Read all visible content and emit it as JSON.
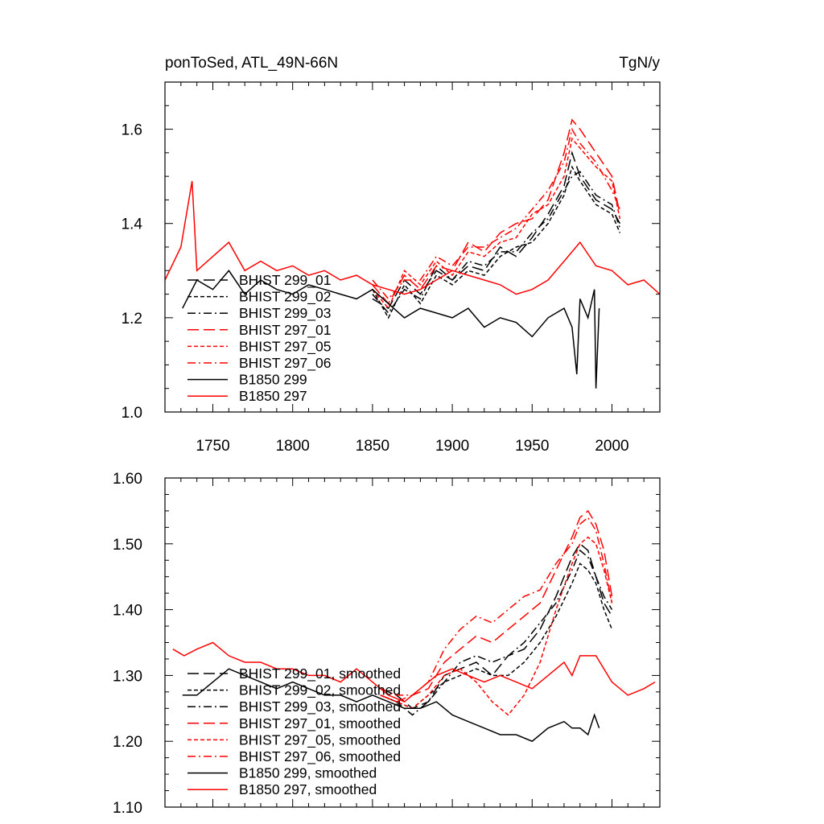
{
  "chart_data": [
    {
      "type": "line",
      "title_left": "ponToSed, ATL_49N-66N",
      "title_right": "TgN/y",
      "xlim": [
        1720,
        2030
      ],
      "ylim": [
        1.0,
        1.7
      ],
      "xticks": [
        1750,
        1800,
        1850,
        1900,
        1950,
        2000
      ],
      "xtick_labels": [
        "1750",
        "1800",
        "1850",
        "1900",
        "1950",
        "2000"
      ],
      "yticks": [
        1.0,
        1.2,
        1.4,
        1.6
      ],
      "ytick_labels": [
        "1.0",
        "1.2",
        "1.4",
        "1.6"
      ],
      "legend": [
        {
          "label": "BHIST 299_01",
          "color": "#000000",
          "dash": "14,6"
        },
        {
          "label": "BHIST 299_02",
          "color": "#000000",
          "dash": "5,3"
        },
        {
          "label": "BHIST 299_03",
          "color": "#000000",
          "dash": "10,4,2,4"
        },
        {
          "label": "BHIST 297_01",
          "color": "#ff0000",
          "dash": "14,6"
        },
        {
          "label": "BHIST 297_05",
          "color": "#ff0000",
          "dash": "5,3"
        },
        {
          "label": "BHIST 297_06",
          "color": "#ff0000",
          "dash": "10,4,2,4"
        },
        {
          "label": "B1850 299",
          "color": "#000000",
          "dash": ""
        },
        {
          "label": "B1850 297",
          "color": "#ff0000",
          "dash": ""
        }
      ],
      "series": [
        {
          "name": "BHIST 299_01",
          "color": "#000000",
          "dash": "14,6",
          "x": [
            1850,
            1860,
            1870,
            1880,
            1890,
            1900,
            1910,
            1920,
            1930,
            1940,
            1950,
            1960,
            1970,
            1975,
            1980,
            1990,
            2000,
            2005
          ],
          "y": [
            1.24,
            1.22,
            1.28,
            1.25,
            1.3,
            1.28,
            1.31,
            1.3,
            1.35,
            1.33,
            1.37,
            1.42,
            1.48,
            1.55,
            1.5,
            1.45,
            1.43,
            1.4
          ]
        },
        {
          "name": "BHIST 299_02",
          "color": "#000000",
          "dash": "5,3",
          "x": [
            1850,
            1860,
            1870,
            1880,
            1890,
            1900,
            1910,
            1920,
            1930,
            1940,
            1950,
            1960,
            1970,
            1975,
            1980,
            1990,
            2000,
            2005
          ],
          "y": [
            1.26,
            1.2,
            1.27,
            1.23,
            1.29,
            1.27,
            1.3,
            1.29,
            1.33,
            1.35,
            1.36,
            1.4,
            1.46,
            1.52,
            1.49,
            1.44,
            1.42,
            1.38
          ]
        },
        {
          "name": "BHIST 299_03",
          "color": "#000000",
          "dash": "10,4,2,4",
          "x": [
            1850,
            1860,
            1870,
            1880,
            1890,
            1900,
            1910,
            1920,
            1930,
            1940,
            1950,
            1960,
            1970,
            1975,
            1980,
            1990,
            2000,
            2005
          ],
          "y": [
            1.25,
            1.21,
            1.26,
            1.24,
            1.31,
            1.28,
            1.32,
            1.31,
            1.34,
            1.34,
            1.38,
            1.41,
            1.47,
            1.5,
            1.51,
            1.46,
            1.44,
            1.39
          ]
        },
        {
          "name": "BHIST 297_01",
          "color": "#ff0000",
          "dash": "14,6",
          "x": [
            1850,
            1860,
            1870,
            1880,
            1890,
            1900,
            1910,
            1920,
            1930,
            1940,
            1950,
            1960,
            1970,
            1975,
            1980,
            1990,
            2000,
            2005
          ],
          "y": [
            1.27,
            1.23,
            1.29,
            1.26,
            1.31,
            1.3,
            1.36,
            1.34,
            1.38,
            1.4,
            1.41,
            1.45,
            1.55,
            1.62,
            1.6,
            1.55,
            1.5,
            1.42
          ]
        },
        {
          "name": "BHIST 297_05",
          "color": "#ff0000",
          "dash": "5,3",
          "x": [
            1850,
            1860,
            1870,
            1880,
            1890,
            1900,
            1910,
            1920,
            1930,
            1940,
            1950,
            1960,
            1970,
            1975,
            1980,
            1990,
            2000,
            2005
          ],
          "y": [
            1.26,
            1.22,
            1.3,
            1.27,
            1.32,
            1.29,
            1.34,
            1.33,
            1.36,
            1.37,
            1.42,
            1.44,
            1.5,
            1.58,
            1.56,
            1.52,
            1.49,
            1.41
          ]
        },
        {
          "name": "BHIST 297_06",
          "color": "#ff0000",
          "dash": "10,4,2,4",
          "x": [
            1850,
            1860,
            1870,
            1880,
            1890,
            1900,
            1910,
            1920,
            1930,
            1940,
            1950,
            1960,
            1970,
            1975,
            1980,
            1990,
            2000,
            2005
          ],
          "y": [
            1.28,
            1.24,
            1.28,
            1.28,
            1.33,
            1.31,
            1.35,
            1.35,
            1.37,
            1.39,
            1.43,
            1.47,
            1.53,
            1.6,
            1.57,
            1.53,
            1.47,
            1.43
          ]
        },
        {
          "name": "B1850 299",
          "color": "#000000",
          "dash": "",
          "x": [
            1731,
            1740,
            1750,
            1760,
            1770,
            1780,
            1790,
            1800,
            1810,
            1820,
            1830,
            1840,
            1850,
            1860,
            1870,
            1880,
            1890,
            1900,
            1910,
            1920,
            1930,
            1940,
            1950,
            1960,
            1970,
            1975,
            1978,
            1980,
            1985,
            1989,
            1990,
            1992
          ],
          "y": [
            1.22,
            1.28,
            1.26,
            1.3,
            1.25,
            1.28,
            1.26,
            1.25,
            1.27,
            1.26,
            1.25,
            1.24,
            1.26,
            1.23,
            1.2,
            1.22,
            1.21,
            1.2,
            1.22,
            1.18,
            1.2,
            1.19,
            1.16,
            1.2,
            1.22,
            1.18,
            1.08,
            1.24,
            1.2,
            1.26,
            1.05,
            1.22
          ]
        },
        {
          "name": "B1850 297",
          "color": "#ff0000",
          "dash": "",
          "x": [
            1720,
            1730,
            1737,
            1740,
            1750,
            1760,
            1770,
            1780,
            1790,
            1800,
            1810,
            1820,
            1830,
            1840,
            1850,
            1860,
            1870,
            1880,
            1890,
            1900,
            1910,
            1920,
            1930,
            1940,
            1950,
            1960,
            1970,
            1980,
            1990,
            2000,
            2010,
            2020,
            2030
          ],
          "y": [
            1.28,
            1.35,
            1.49,
            1.3,
            1.33,
            1.36,
            1.3,
            1.32,
            1.3,
            1.31,
            1.29,
            1.3,
            1.28,
            1.29,
            1.27,
            1.26,
            1.25,
            1.26,
            1.28,
            1.3,
            1.29,
            1.28,
            1.27,
            1.25,
            1.26,
            1.28,
            1.32,
            1.36,
            1.31,
            1.3,
            1.27,
            1.28,
            1.25
          ]
        }
      ]
    },
    {
      "type": "line",
      "xlim": [
        1720,
        2030
      ],
      "ylim": [
        1.1,
        1.6
      ],
      "xticks": [
        1750,
        1800,
        1850,
        1900,
        1950,
        2000
      ],
      "yticks": [
        1.1,
        1.2,
        1.3,
        1.4,
        1.5,
        1.6
      ],
      "ytick_labels": [
        "1.10",
        "1.20",
        "1.30",
        "1.40",
        "1.50",
        "1.60"
      ],
      "legend": [
        {
          "label": "BHIST 299_01, smoothed",
          "color": "#000000",
          "dash": "14,6"
        },
        {
          "label": "BHIST 299_02, smoothed",
          "color": "#000000",
          "dash": "5,3"
        },
        {
          "label": "BHIST 299_03, smoothed",
          "color": "#000000",
          "dash": "10,4,2,4"
        },
        {
          "label": "BHIST 297_01, smoothed",
          "color": "#ff0000",
          "dash": "14,6"
        },
        {
          "label": "BHIST 297_05, smoothed",
          "color": "#ff0000",
          "dash": "5,3"
        },
        {
          "label": "BHIST 297_06, smoothed",
          "color": "#ff0000",
          "dash": "10,4,2,4"
        },
        {
          "label": "B1850 299, smoothed",
          "color": "#000000",
          "dash": ""
        },
        {
          "label": "B1850 297, smoothed",
          "color": "#ff0000",
          "dash": ""
        }
      ],
      "series": [
        {
          "name": "BHIST 299_01, smoothed",
          "color": "#000000",
          "dash": "14,6",
          "x": [
            1855,
            1865,
            1875,
            1885,
            1895,
            1905,
            1915,
            1925,
            1935,
            1945,
            1955,
            1965,
            1975,
            1980,
            1985,
            1990,
            1995,
            2000
          ],
          "y": [
            1.28,
            1.27,
            1.25,
            1.26,
            1.3,
            1.31,
            1.32,
            1.3,
            1.33,
            1.34,
            1.37,
            1.42,
            1.48,
            1.5,
            1.49,
            1.45,
            1.41,
            1.39
          ]
        },
        {
          "name": "BHIST 299_02, smoothed",
          "color": "#000000",
          "dash": "5,3",
          "x": [
            1855,
            1865,
            1875,
            1885,
            1895,
            1905,
            1915,
            1925,
            1935,
            1945,
            1955,
            1965,
            1975,
            1980,
            1985,
            1990,
            1995,
            2000
          ],
          "y": [
            1.27,
            1.26,
            1.25,
            1.27,
            1.29,
            1.3,
            1.31,
            1.3,
            1.3,
            1.32,
            1.35,
            1.39,
            1.44,
            1.47,
            1.46,
            1.44,
            1.4,
            1.37
          ]
        },
        {
          "name": "BHIST 299_03, smoothed",
          "color": "#000000",
          "dash": "10,4,2,4",
          "x": [
            1855,
            1865,
            1875,
            1885,
            1895,
            1905,
            1915,
            1925,
            1935,
            1945,
            1955,
            1965,
            1975,
            1980,
            1985,
            1990,
            1995,
            2000
          ],
          "y": [
            1.27,
            1.26,
            1.24,
            1.26,
            1.29,
            1.32,
            1.33,
            1.32,
            1.33,
            1.35,
            1.38,
            1.41,
            1.46,
            1.49,
            1.48,
            1.45,
            1.42,
            1.4
          ]
        },
        {
          "name": "BHIST 297_01, smoothed",
          "color": "#ff0000",
          "dash": "14,6",
          "x": [
            1855,
            1865,
            1875,
            1885,
            1895,
            1905,
            1915,
            1925,
            1935,
            1945,
            1955,
            1965,
            1975,
            1980,
            1985,
            1990,
            1995,
            2000
          ],
          "y": [
            1.27,
            1.26,
            1.27,
            1.28,
            1.32,
            1.34,
            1.36,
            1.35,
            1.37,
            1.39,
            1.41,
            1.46,
            1.51,
            1.54,
            1.55,
            1.53,
            1.49,
            1.42
          ]
        },
        {
          "name": "BHIST 297_05, smoothed",
          "color": "#ff0000",
          "dash": "5,3",
          "x": [
            1855,
            1865,
            1875,
            1885,
            1895,
            1905,
            1915,
            1925,
            1935,
            1945,
            1955,
            1965,
            1975,
            1980,
            1985,
            1990,
            1995,
            2000
          ],
          "y": [
            1.27,
            1.26,
            1.25,
            1.27,
            1.3,
            1.31,
            1.29,
            1.26,
            1.24,
            1.27,
            1.32,
            1.4,
            1.47,
            1.5,
            1.51,
            1.5,
            1.46,
            1.41
          ]
        },
        {
          "name": "BHIST 297_06, smoothed",
          "color": "#ff0000",
          "dash": "10,4,2,4",
          "x": [
            1855,
            1865,
            1875,
            1885,
            1895,
            1905,
            1915,
            1925,
            1935,
            1945,
            1955,
            1965,
            1975,
            1980,
            1985,
            1990,
            1995,
            2000
          ],
          "y": [
            1.28,
            1.27,
            1.27,
            1.29,
            1.34,
            1.37,
            1.39,
            1.38,
            1.4,
            1.42,
            1.43,
            1.47,
            1.5,
            1.53,
            1.54,
            1.52,
            1.47,
            1.41
          ]
        },
        {
          "name": "B1850 299, smoothed",
          "color": "#000000",
          "dash": "",
          "x": [
            1731,
            1740,
            1750,
            1760,
            1770,
            1780,
            1790,
            1800,
            1810,
            1820,
            1830,
            1840,
            1850,
            1860,
            1870,
            1880,
            1890,
            1900,
            1910,
            1920,
            1930,
            1940,
            1950,
            1960,
            1970,
            1975,
            1980,
            1985,
            1989,
            1992
          ],
          "y": [
            1.27,
            1.27,
            1.29,
            1.31,
            1.3,
            1.29,
            1.28,
            1.29,
            1.28,
            1.27,
            1.27,
            1.26,
            1.27,
            1.26,
            1.25,
            1.25,
            1.26,
            1.24,
            1.23,
            1.22,
            1.21,
            1.21,
            1.2,
            1.22,
            1.23,
            1.22,
            1.22,
            1.21,
            1.24,
            1.22
          ]
        },
        {
          "name": "B1850 297, smoothed",
          "color": "#ff0000",
          "dash": "",
          "x": [
            1725,
            1732,
            1740,
            1750,
            1760,
            1770,
            1780,
            1790,
            1800,
            1810,
            1820,
            1830,
            1840,
            1850,
            1860,
            1870,
            1880,
            1890,
            1900,
            1910,
            1920,
            1930,
            1940,
            1950,
            1960,
            1970,
            1975,
            1980,
            1990,
            2000,
            2010,
            2020,
            2027
          ],
          "y": [
            1.34,
            1.33,
            1.34,
            1.35,
            1.33,
            1.32,
            1.32,
            1.31,
            1.31,
            1.3,
            1.3,
            1.29,
            1.31,
            1.29,
            1.27,
            1.26,
            1.28,
            1.3,
            1.31,
            1.3,
            1.29,
            1.3,
            1.29,
            1.28,
            1.3,
            1.32,
            1.3,
            1.33,
            1.33,
            1.29,
            1.27,
            1.28,
            1.29
          ]
        }
      ]
    }
  ]
}
